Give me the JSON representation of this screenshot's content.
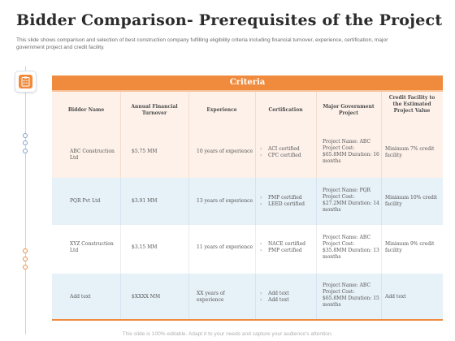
{
  "title": "Bidder Comparison- Prerequisites of the Project",
  "subtitle": "This slide shows comparison and selection of best construction company fulfilling eligibility criteria including financial turnover, experience, certification, major government project and credit facility.",
  "criteria_label": "Criteria",
  "headers": {
    "bidder": "Bidder Name",
    "turnover": "Annual Financial Turnover",
    "experience": "Experience",
    "certification": "Certification",
    "project": "Major Government Project",
    "credit": "Credit Facility to the Estimated Project Value"
  },
  "rows": [
    {
      "bidder": "ABC Construction Ltd",
      "turnover": "$5.75 MM",
      "experience": "10 years of experience",
      "certifications": [
        "ACI certified",
        "CPC certified"
      ],
      "project": "Project Name: ABC Project Cost: $65.8MM Duration: 16 months",
      "credit": "Minimum 7% credit facility"
    },
    {
      "bidder": "PQR Pvt Ltd",
      "turnover": "$3.91 MM",
      "experience": "13 years of experience",
      "certifications": [
        "PMP certified",
        "LEED certified"
      ],
      "project": "Project Name: PQR Project Cost: $27.2MM Duration: 14 months",
      "credit": "Minimum 10% credit facility"
    },
    {
      "bidder": "XYZ Construction Ltd",
      "turnover": "$3.15 MM",
      "experience": "11 years of experience",
      "certifications": [
        "NACE certified",
        "PMP certified"
      ],
      "project": "Project Name: ABC Project Cost: $35.8MM Duration: 13 months",
      "credit": "Minimum 9% credit facility"
    },
    {
      "bidder": "Add text",
      "turnover": "$XXXX MM",
      "experience": "XX years of experience",
      "certifications": [
        "Add text",
        "Add text"
      ],
      "project": "Project Name: ABC Project Cost: $65.8MM Duration: 15 months",
      "credit": "Add text"
    }
  ],
  "footer": "This slide is 100% editable. Adapt it to your needs and capture your audience's attention.",
  "colors": {
    "accent": "#f08a3c",
    "row_peach": "#fdf1ea",
    "row_blue": "#e7f1f8",
    "rail": "#7ea2c8"
  },
  "icons": {
    "badge": "clipboard-checklist-icon"
  }
}
